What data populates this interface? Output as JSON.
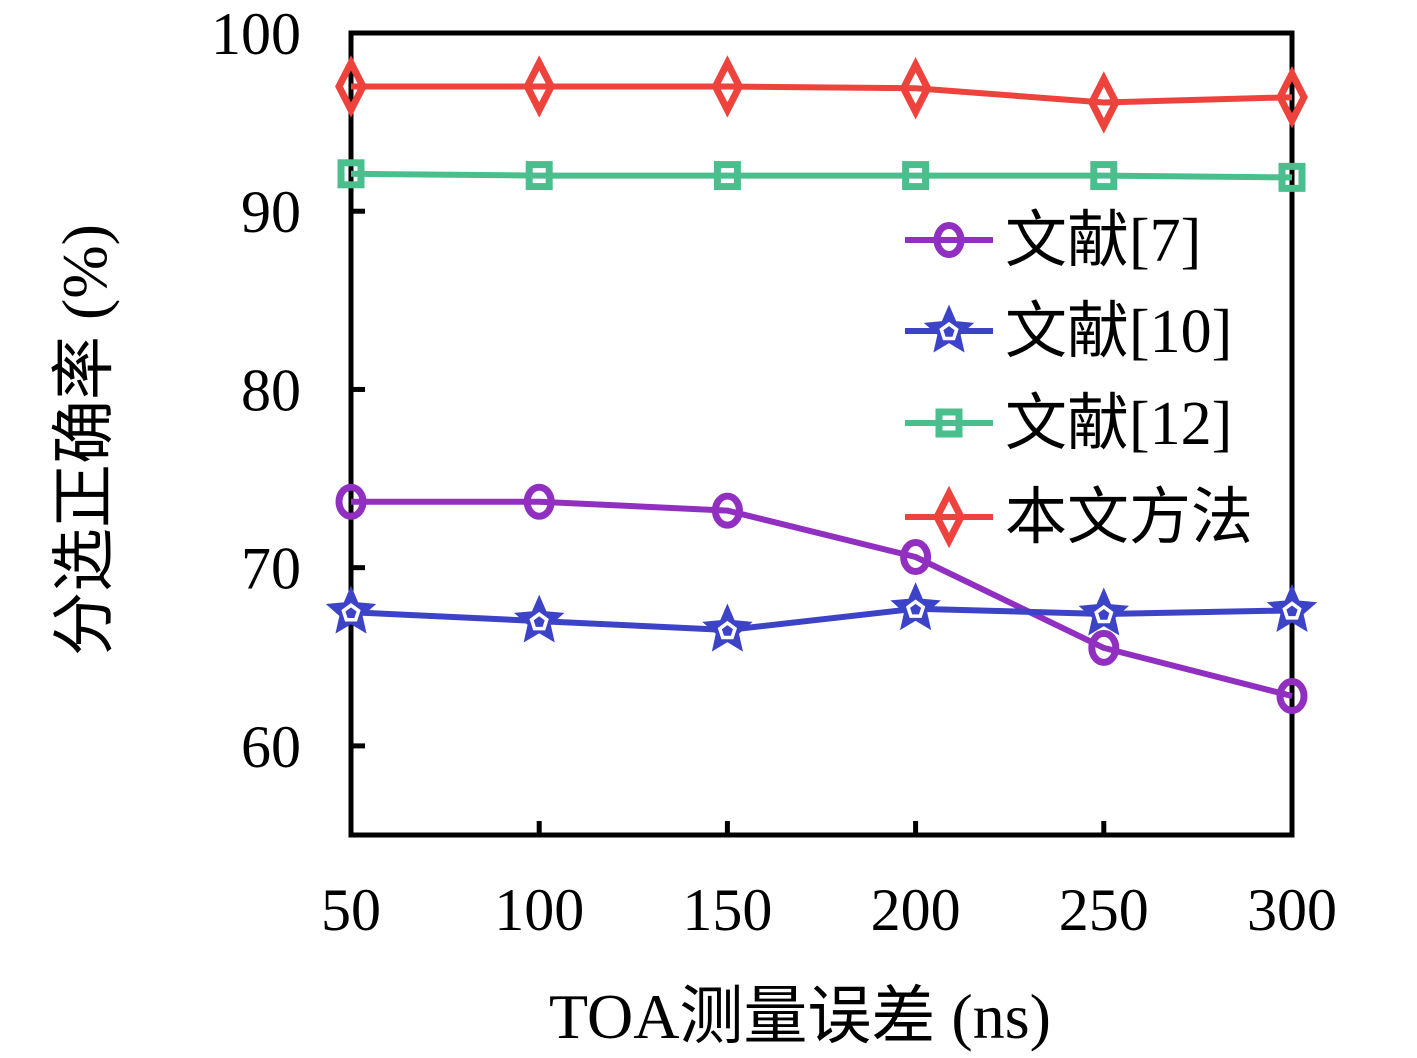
{
  "figure": {
    "background": "#ffffff",
    "axis_color": "#000000",
    "text_color": "#000000"
  },
  "chart_data": {
    "type": "line",
    "title": "",
    "xlabel": "TOA测量误差 (ns)",
    "ylabel": "分选正确率 (%)",
    "x": [
      50,
      100,
      150,
      200,
      250,
      300
    ],
    "xticks": [
      50,
      100,
      150,
      200,
      250,
      300
    ],
    "yticks": [
      60,
      70,
      80,
      90,
      100
    ],
    "xlim": [
      50,
      300
    ],
    "ylim": [
      55,
      100
    ],
    "grid": false,
    "legend": {
      "position": "inside-upper-right",
      "border": false
    },
    "series": [
      {
        "name": "文献[7]",
        "marker": "circle",
        "color": "#9130C0",
        "values": [
          73.7,
          73.7,
          73.2,
          70.6,
          65.5,
          62.8
        ]
      },
      {
        "name": "文献[10]",
        "marker": "star",
        "color": "#3D43C6",
        "values": [
          67.5,
          67.0,
          66.5,
          67.7,
          67.4,
          67.6
        ]
      },
      {
        "name": "文献[12]",
        "marker": "square",
        "color": "#4BBE8D",
        "values": [
          92.1,
          92.0,
          92.0,
          92.0,
          92.0,
          91.9
        ]
      },
      {
        "name": "本文方法",
        "marker": "diamond",
        "color": "#EE423D",
        "values": [
          97.0,
          97.0,
          97.0,
          96.9,
          96.1,
          96.4
        ]
      }
    ]
  }
}
